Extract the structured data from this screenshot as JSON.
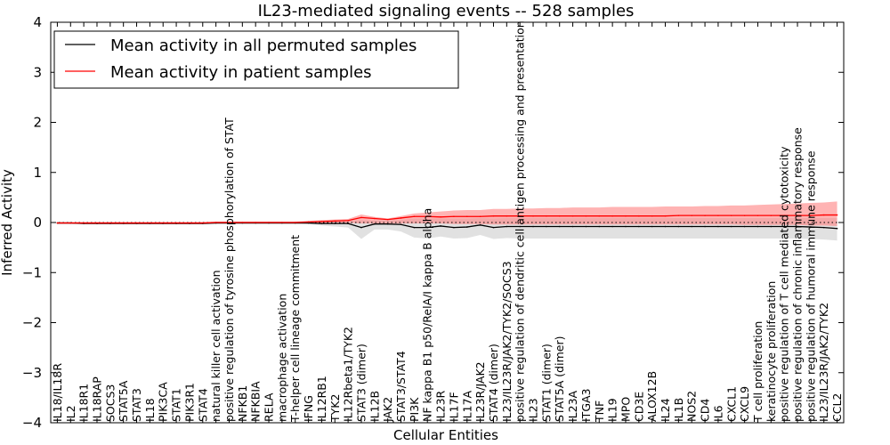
{
  "chart_data": {
    "type": "line",
    "title": "IL23-mediated signaling events -- 528 samples",
    "xlabel": "Cellular Entities",
    "ylabel": "Inferred Activity",
    "ylim": [
      -4,
      4
    ],
    "yticks": [
      -4,
      -3,
      -2,
      -1,
      0,
      1,
      2,
      3,
      4
    ],
    "ytick_labels": [
      "−4",
      "−3",
      "−2",
      "−1",
      "0",
      "1",
      "2",
      "3",
      "4"
    ],
    "legend": {
      "placement": "top-left"
    },
    "categories": [
      "IL18/IL18R",
      "IL2",
      "IL18R1",
      "IL18RAP",
      "SOCS3",
      "STAT5A",
      "STAT3",
      "IL18",
      "PIK3CA",
      "STAT1",
      "PIK3R1",
      "STAT4",
      "natural killer cell activation",
      "positive regulation of tyrosine phosphorylation of STAT",
      "NFKB1",
      "NFKBIA",
      "RELA",
      "macrophage activation",
      "T-helper cell lineage commitment",
      "IFNG",
      "IL12RB1",
      "TYK2",
      "IL12Rbeta1/TYK2",
      "STAT3 (dimer)",
      "IL12B",
      "JAK2",
      "STAT3/STAT4",
      "PI3K",
      "NF kappa B1 p50/RelA/I kappa B alpha",
      "IL23R",
      "IL17F",
      "IL17A",
      "IL23R/JAK2",
      "STAT4 (dimer)",
      "IL23/IL23R/JAK2/TYK2/SOCS3",
      "positive regulation of dendritic cell antigen processing and presentation",
      "IL23",
      "STAT1 (dimer)",
      "STAT5A (dimer)",
      "IL23A",
      "ITGA3",
      "TNF",
      "IL19",
      "MPO",
      "CD3E",
      "ALOX12B",
      "IL24",
      "IL1B",
      "NOS2",
      "CD4",
      "IL6",
      "CXCL1",
      "CXCL9",
      "T cell proliferation",
      "keratinocyte proliferation",
      "positive regulation of T cell mediated cytotoxicity",
      "positive regulation of chronic inflammatory response",
      "positive regulation of humoral immune response",
      "IL23/IL23R/JAK2/TYK2",
      "CCL2"
    ],
    "series": [
      {
        "name": "Mean activity in all permuted samples",
        "color": "#000000",
        "values": [
          -0.01,
          -0.01,
          -0.02,
          -0.02,
          -0.02,
          -0.02,
          -0.02,
          -0.02,
          -0.02,
          -0.02,
          -0.02,
          -0.02,
          -0.01,
          -0.01,
          -0.01,
          -0.01,
          -0.01,
          -0.01,
          -0.01,
          -0.01,
          -0.02,
          -0.02,
          -0.02,
          -0.1,
          -0.03,
          -0.03,
          -0.04,
          -0.1,
          -0.1,
          -0.07,
          -0.1,
          -0.09,
          -0.05,
          -0.1,
          -0.08,
          -0.08,
          -0.08,
          -0.08,
          -0.08,
          -0.08,
          -0.08,
          -0.08,
          -0.08,
          -0.08,
          -0.08,
          -0.08,
          -0.08,
          -0.08,
          -0.08,
          -0.08,
          -0.08,
          -0.08,
          -0.08,
          -0.08,
          -0.08,
          -0.08,
          -0.08,
          -0.09,
          -0.1,
          -0.12
        ],
        "band_low": [
          -0.03,
          -0.03,
          -0.03,
          -0.03,
          -0.03,
          -0.03,
          -0.03,
          -0.03,
          -0.03,
          -0.03,
          -0.03,
          -0.03,
          -0.02,
          -0.02,
          -0.02,
          -0.02,
          -0.02,
          -0.02,
          -0.02,
          -0.03,
          -0.06,
          -0.08,
          -0.1,
          -0.33,
          -0.14,
          -0.14,
          -0.18,
          -0.3,
          -0.32,
          -0.28,
          -0.32,
          -0.31,
          -0.25,
          -0.33,
          -0.31,
          -0.32,
          -0.32,
          -0.32,
          -0.32,
          -0.32,
          -0.32,
          -0.32,
          -0.32,
          -0.32,
          -0.32,
          -0.32,
          -0.32,
          -0.32,
          -0.32,
          -0.32,
          -0.32,
          -0.32,
          -0.32,
          -0.32,
          -0.32,
          -0.32,
          -0.32,
          -0.33,
          -0.34,
          -0.36
        ],
        "band_high": [
          0.01,
          0.01,
          0.0,
          0.0,
          0.0,
          0.0,
          0.0,
          0.0,
          0.0,
          0.0,
          0.0,
          0.0,
          0.01,
          0.01,
          0.01,
          0.01,
          0.01,
          0.01,
          0.01,
          0.01,
          0.01,
          0.02,
          0.03,
          0.05,
          0.04,
          0.04,
          0.05,
          0.08,
          0.08,
          0.08,
          0.08,
          0.08,
          0.09,
          0.08,
          0.09,
          0.09,
          0.09,
          0.09,
          0.09,
          0.09,
          0.09,
          0.09,
          0.09,
          0.09,
          0.09,
          0.09,
          0.09,
          0.09,
          0.09,
          0.09,
          0.09,
          0.09,
          0.09,
          0.09,
          0.09,
          0.09,
          0.09,
          0.09,
          0.09,
          0.09
        ],
        "band_color": "#c8c8c8"
      },
      {
        "name": "Mean activity in patient samples",
        "color": "#ff0000",
        "values": [
          -0.01,
          -0.01,
          -0.01,
          -0.01,
          -0.01,
          -0.01,
          -0.01,
          -0.01,
          -0.01,
          -0.01,
          -0.01,
          -0.01,
          0.0,
          0.0,
          0.0,
          0.0,
          0.0,
          0.0,
          0.0,
          0.01,
          0.02,
          0.03,
          0.04,
          0.1,
          0.08,
          0.06,
          0.09,
          0.12,
          0.12,
          0.11,
          0.12,
          0.12,
          0.12,
          0.13,
          0.13,
          0.13,
          0.13,
          0.13,
          0.13,
          0.13,
          0.13,
          0.13,
          0.13,
          0.13,
          0.13,
          0.13,
          0.13,
          0.14,
          0.14,
          0.14,
          0.14,
          0.14,
          0.14,
          0.14,
          0.14,
          0.14,
          0.14,
          0.14,
          0.15,
          0.15
        ],
        "band_low": [
          -0.02,
          -0.02,
          -0.02,
          -0.02,
          -0.02,
          -0.02,
          -0.02,
          -0.02,
          -0.02,
          -0.02,
          -0.02,
          -0.02,
          -0.01,
          -0.01,
          -0.01,
          -0.01,
          -0.01,
          -0.01,
          -0.01,
          0.0,
          -0.01,
          -0.01,
          -0.01,
          -0.02,
          -0.02,
          -0.02,
          -0.02,
          -0.02,
          -0.02,
          -0.02,
          -0.03,
          -0.03,
          -0.03,
          -0.04,
          -0.04,
          -0.04,
          -0.04,
          -0.04,
          -0.04,
          -0.04,
          -0.04,
          -0.04,
          -0.04,
          -0.04,
          -0.04,
          -0.04,
          -0.04,
          -0.04,
          -0.04,
          -0.04,
          -0.04,
          -0.04,
          -0.05,
          -0.05,
          -0.05,
          -0.05,
          -0.05,
          -0.06,
          -0.06,
          -0.07
        ],
        "band_high": [
          0.01,
          0.01,
          0.01,
          0.01,
          0.01,
          0.01,
          0.01,
          0.01,
          0.01,
          0.01,
          0.01,
          0.01,
          0.02,
          0.02,
          0.02,
          0.02,
          0.02,
          0.02,
          0.02,
          0.03,
          0.05,
          0.06,
          0.07,
          0.16,
          0.11,
          0.08,
          0.13,
          0.18,
          0.2,
          0.22,
          0.24,
          0.25,
          0.25,
          0.27,
          0.27,
          0.28,
          0.28,
          0.29,
          0.29,
          0.3,
          0.3,
          0.3,
          0.31,
          0.31,
          0.31,
          0.31,
          0.32,
          0.32,
          0.32,
          0.33,
          0.33,
          0.34,
          0.34,
          0.35,
          0.36,
          0.37,
          0.38,
          0.39,
          0.4,
          0.42
        ],
        "band_color": "#ff8080"
      }
    ]
  }
}
